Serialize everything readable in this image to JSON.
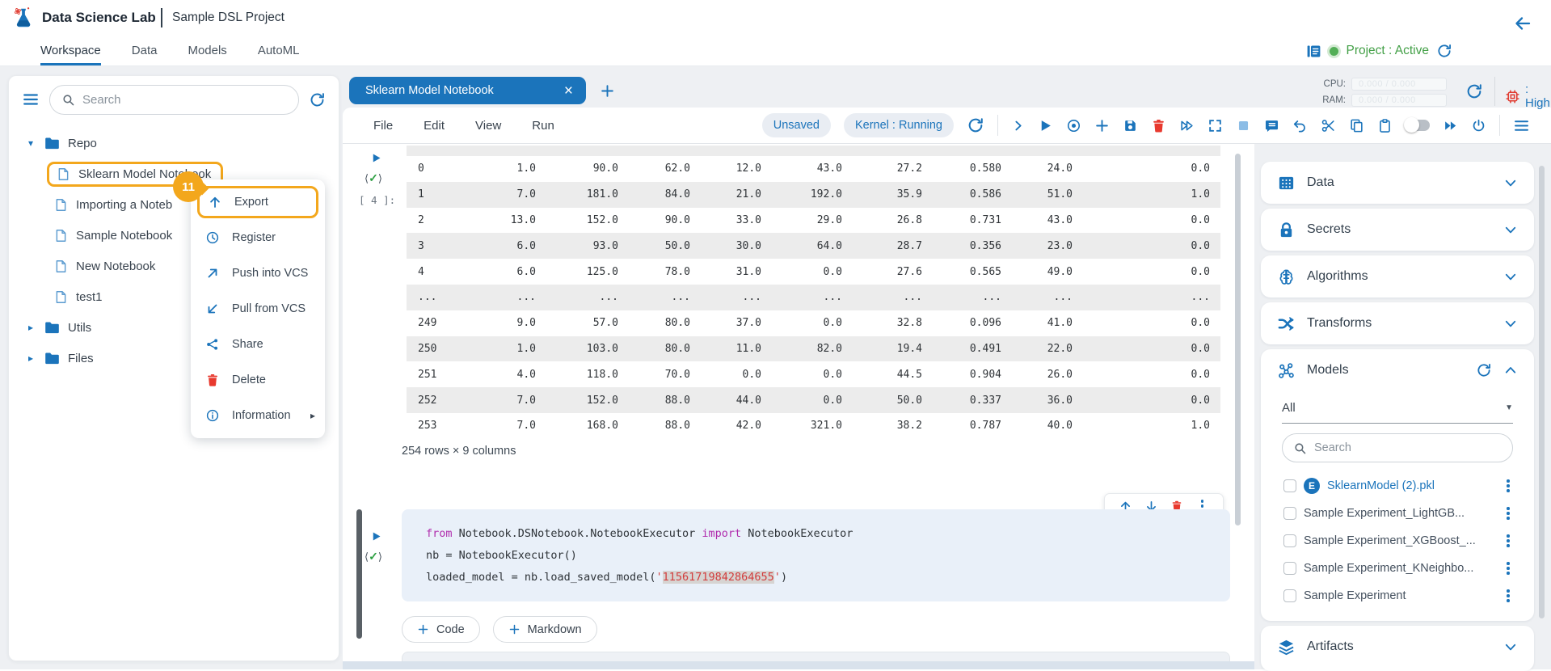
{
  "header": {
    "app_title": "Data Science Lab",
    "project_title": "Sample DSL Project"
  },
  "nav": {
    "tabs": [
      {
        "label": "Workspace",
        "active": true
      },
      {
        "label": "Data",
        "active": false
      },
      {
        "label": "Models",
        "active": false
      },
      {
        "label": "AutoML",
        "active": false
      }
    ],
    "project_status": "Project : Active"
  },
  "left_panel": {
    "search_placeholder": "Search",
    "tree": [
      {
        "type": "folder",
        "label": "Repo",
        "state": "expanded"
      },
      {
        "type": "file",
        "label": "Sklearn Model Notebook",
        "highlighted": true
      },
      {
        "type": "file",
        "label": "Importing a Noteb"
      },
      {
        "type": "file",
        "label": "Sample Notebook"
      },
      {
        "type": "file",
        "label": "New Notebook"
      },
      {
        "type": "file",
        "label": "test1"
      },
      {
        "type": "folder",
        "label": "Utils",
        "state": "collapsed"
      },
      {
        "type": "folder",
        "label": "Files",
        "state": "collapsed"
      }
    ]
  },
  "context_menu": {
    "step_badge": "11",
    "items": [
      {
        "label": "Export",
        "icon": "arrow-up",
        "highlighted": true
      },
      {
        "label": "Register",
        "icon": "clock"
      },
      {
        "label": "Push into VCS",
        "icon": "arrow-up-right"
      },
      {
        "label": "Pull from VCS",
        "icon": "arrow-down-left"
      },
      {
        "label": "Share",
        "icon": "share"
      },
      {
        "label": "Delete",
        "icon": "trash",
        "danger": true
      },
      {
        "label": "Information",
        "icon": "info",
        "submenu": true
      }
    ]
  },
  "notebook": {
    "tab_title": "Sklearn Model Notebook",
    "menu_items": [
      "File",
      "Edit",
      "View",
      "Run"
    ],
    "save_state": "Unsaved",
    "kernel_status": "Kernel : Running",
    "resources": {
      "cpu_label": "CPU:",
      "cpu_value": "0.000 / 0.000",
      "ram_label": "RAM:",
      "ram_value": "0.000 / 0.000",
      "priority_label": ": High"
    },
    "toolbar_icons": [
      "chevron-right",
      "play",
      "record",
      "plus",
      "save",
      "trash",
      "skip-forward",
      "fullscreen",
      "stop",
      "output",
      "undo",
      "scissors",
      "copy",
      "clipboard",
      "toggle",
      "fast-forward",
      "power"
    ],
    "execution_count": "[ 4 ]:",
    "table": {
      "rows": [
        [
          "0",
          "1.0",
          "90.0",
          "62.0",
          "12.0",
          "43.0",
          "27.2",
          "0.580",
          "24.0",
          "0.0"
        ],
        [
          "1",
          "7.0",
          "181.0",
          "84.0",
          "21.0",
          "192.0",
          "35.9",
          "0.586",
          "51.0",
          "1.0"
        ],
        [
          "2",
          "13.0",
          "152.0",
          "90.0",
          "33.0",
          "29.0",
          "26.8",
          "0.731",
          "43.0",
          "0.0"
        ],
        [
          "3",
          "6.0",
          "93.0",
          "50.0",
          "30.0",
          "64.0",
          "28.7",
          "0.356",
          "23.0",
          "0.0"
        ],
        [
          "4",
          "6.0",
          "125.0",
          "78.0",
          "31.0",
          "0.0",
          "27.6",
          "0.565",
          "49.0",
          "0.0"
        ],
        [
          "...",
          "...",
          "...",
          "...",
          "...",
          "...",
          "...",
          "...",
          "...",
          "..."
        ],
        [
          "249",
          "9.0",
          "57.0",
          "80.0",
          "37.0",
          "0.0",
          "32.8",
          "0.096",
          "41.0",
          "0.0"
        ],
        [
          "250",
          "1.0",
          "103.0",
          "80.0",
          "11.0",
          "82.0",
          "19.4",
          "0.491",
          "22.0",
          "0.0"
        ],
        [
          "251",
          "4.0",
          "118.0",
          "70.0",
          "0.0",
          "0.0",
          "44.5",
          "0.904",
          "26.0",
          "0.0"
        ],
        [
          "252",
          "7.0",
          "152.0",
          "88.0",
          "44.0",
          "0.0",
          "50.0",
          "0.337",
          "36.0",
          "0.0"
        ],
        [
          "253",
          "7.0",
          "168.0",
          "88.0",
          "42.0",
          "321.0",
          "38.2",
          "0.787",
          "40.0",
          "1.0"
        ]
      ],
      "caption": "254 rows × 9 columns"
    },
    "cell_toolbar_icons": [
      "arrow-up",
      "arrow-down",
      "trash",
      "kebab"
    ],
    "code_cell": {
      "lines": [
        [
          {
            "text": "from",
            "type": "keyword"
          },
          {
            "text": " Notebook.DSNotebook.NotebookExecutor ",
            "type": "plain"
          },
          {
            "text": "import",
            "type": "keyword"
          },
          {
            "text": " NotebookExecutor",
            "type": "plain"
          }
        ],
        [
          {
            "text": "nb = NotebookExecutor()",
            "type": "plain"
          }
        ],
        [
          {
            "text": "loaded_model = nb.load_saved_model(",
            "type": "plain"
          },
          {
            "text": "'",
            "type": "string"
          },
          {
            "text": "11561719842864655",
            "type": "string-highlight"
          },
          {
            "text": "'",
            "type": "string"
          },
          {
            "text": ")",
            "type": "plain"
          }
        ]
      ]
    },
    "add_buttons": [
      {
        "label": "Code"
      },
      {
        "label": "Markdown"
      }
    ]
  },
  "right_panel": {
    "sections": [
      {
        "label": "Data",
        "icon": "data-grid"
      },
      {
        "label": "Secrets",
        "icon": "lock"
      },
      {
        "label": "Algorithms",
        "icon": "brain"
      },
      {
        "label": "Transforms",
        "icon": "shuffle"
      }
    ],
    "models": {
      "label": "Models",
      "icon": "model-network",
      "filter_value": "All",
      "search_placeholder": "Search",
      "items": [
        {
          "label": "SklearnModel (2).pkl",
          "badge": "E",
          "highlighted": true
        },
        {
          "label": "Sample Experiment_LightGB..."
        },
        {
          "label": "Sample Experiment_XGBoost_..."
        },
        {
          "label": "Sample Experiment_KNeighbo..."
        },
        {
          "label": "Sample Experiment"
        }
      ]
    },
    "artifacts": {
      "label": "Artifacts",
      "icon": "layers"
    }
  },
  "colors": {
    "primary": "#1b74bb",
    "accent_orange": "#f3a71c",
    "active_green": "#43a047",
    "danger_red": "#e8392e"
  }
}
